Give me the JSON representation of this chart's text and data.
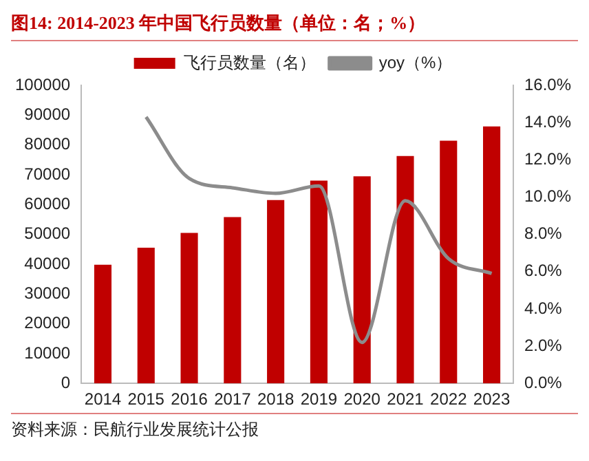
{
  "chart_data": {
    "type": "bar",
    "title": "图14:  2014-2023 年中国飞行员数量（单位：名；%）",
    "categories": [
      "2014",
      "2015",
      "2016",
      "2017",
      "2018",
      "2019",
      "2020",
      "2021",
      "2022",
      "2023"
    ],
    "series": [
      {
        "name": "飞行员数量（名）",
        "color": "#c00000",
        "values": [
          39800,
          45500,
          50500,
          55800,
          61500,
          68000,
          69500,
          76300,
          81400,
          86200
        ]
      },
      {
        "name": "yoy（%）",
        "type": "line",
        "axis": "y2",
        "color": "#8c8c8c",
        "values": [
          null,
          14.3,
          11.0,
          10.5,
          10.2,
          10.6,
          2.2,
          9.8,
          6.7,
          5.9
        ]
      }
    ],
    "ylim": [
      0,
      100000
    ],
    "yticks": [
      0,
      10000,
      20000,
      30000,
      40000,
      50000,
      60000,
      70000,
      80000,
      90000,
      100000
    ],
    "y2lim": [
      0,
      16
    ],
    "y2ticks": [
      {
        "value": 0,
        "label": "0.0%"
      },
      {
        "value": 2,
        "label": "2.0%"
      },
      {
        "value": 4,
        "label": "4.0%"
      },
      {
        "value": 6,
        "label": "6.0%"
      },
      {
        "value": 8,
        "label": "8.0%"
      },
      {
        "value": 10,
        "label": "10.0%"
      },
      {
        "value": 12,
        "label": "12.0%"
      },
      {
        "value": 14,
        "label": "14.0%"
      },
      {
        "value": 16,
        "label": "16.0%"
      }
    ],
    "grid": false,
    "legend": "top",
    "marker": "none",
    "annotations": [
      "资料来源：民航行业发展统计公报"
    ]
  }
}
